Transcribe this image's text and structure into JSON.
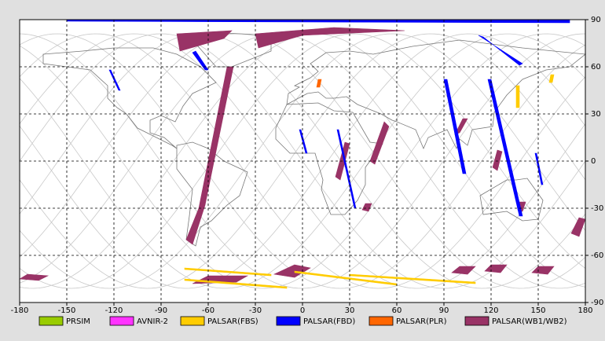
{
  "map_data": {
    "xlim": [
      -180,
      180
    ],
    "ylim": [
      -90,
      90
    ],
    "xticks": [
      -180,
      -150,
      -120,
      -90,
      -60,
      -30,
      0,
      30,
      60,
      90,
      120,
      150,
      180
    ],
    "yticks": [
      90,
      60,
      30,
      0,
      -30,
      -60,
      -90
    ],
    "grid": true,
    "legend": [
      {
        "name": "PRSIM",
        "color": "#99cc00"
      },
      {
        "name": "AVNIR-2",
        "color": "#ff33ff"
      },
      {
        "name": "PALSAR(FBS)",
        "color": "#ffcc00"
      },
      {
        "name": "PALSAR(FBD)",
        "color": "#0000ff"
      },
      {
        "name": "PALSAR(PLR)",
        "color": "#ff6600"
      },
      {
        "name": "PALSAR(WB1/WB2)",
        "color": "#993366"
      }
    ]
  }
}
